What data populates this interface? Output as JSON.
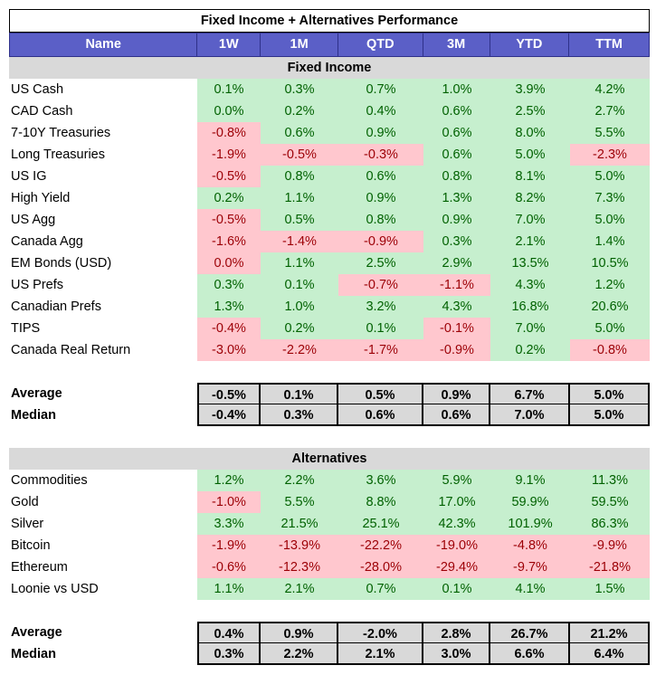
{
  "title": "Fixed Income + Alternatives Performance",
  "columns": [
    "Name",
    "1W",
    "1M",
    "QTD",
    "3M",
    "YTD",
    "TTM"
  ],
  "sections": [
    {
      "label": "Fixed Income",
      "rows": [
        {
          "name": "US Cash",
          "values": [
            "0.1%",
            "0.3%",
            "0.7%",
            "1.0%",
            "3.9%",
            "4.2%"
          ]
        },
        {
          "name": "CAD Cash",
          "values": [
            "0.0%",
            "0.2%",
            "0.4%",
            "0.6%",
            "2.5%",
            "2.7%"
          ]
        },
        {
          "name": "7-10Y Treasuries",
          "values": [
            "-0.8%",
            "0.6%",
            "0.9%",
            "0.6%",
            "8.0%",
            "5.5%"
          ]
        },
        {
          "name": "Long Treasuries",
          "values": [
            "-1.9%",
            "-0.5%",
            "-0.3%",
            "0.6%",
            "5.0%",
            "-2.3%"
          ]
        },
        {
          "name": "US IG",
          "values": [
            "-0.5%",
            "0.8%",
            "0.6%",
            "0.8%",
            "8.1%",
            "5.0%"
          ]
        },
        {
          "name": "High Yield",
          "values": [
            "0.2%",
            "1.1%",
            "0.9%",
            "1.3%",
            "8.2%",
            "7.3%"
          ]
        },
        {
          "name": "US Agg",
          "values": [
            "-0.5%",
            "0.5%",
            "0.8%",
            "0.9%",
            "7.0%",
            "5.0%"
          ]
        },
        {
          "name": "Canada Agg",
          "values": [
            "-1.6%",
            "-1.4%",
            "-0.9%",
            "0.3%",
            "2.1%",
            "1.4%"
          ]
        },
        {
          "name": "EM Bonds (USD)",
          "values": [
            "0.0%",
            "1.1%",
            "2.5%",
            "2.9%",
            "13.5%",
            "10.5%"
          ],
          "neg_override": [
            0
          ]
        },
        {
          "name": "US Prefs",
          "values": [
            "0.3%",
            "0.1%",
            "-0.7%",
            "-1.1%",
            "4.3%",
            "1.2%"
          ]
        },
        {
          "name": "Canadian Prefs",
          "values": [
            "1.3%",
            "1.0%",
            "3.2%",
            "4.3%",
            "16.8%",
            "20.6%"
          ]
        },
        {
          "name": "TIPS",
          "values": [
            "-0.4%",
            "0.2%",
            "0.1%",
            "-0.1%",
            "7.0%",
            "5.0%"
          ]
        },
        {
          "name": "Canada Real Return",
          "values": [
            "-3.0%",
            "-2.2%",
            "-1.7%",
            "-0.9%",
            "0.2%",
            "-0.8%"
          ]
        }
      ],
      "stats": [
        {
          "name": "Average",
          "values": [
            "-0.5%",
            "0.1%",
            "0.5%",
            "0.9%",
            "6.7%",
            "5.0%"
          ]
        },
        {
          "name": "Median",
          "values": [
            "-0.4%",
            "0.3%",
            "0.6%",
            "0.6%",
            "7.0%",
            "5.0%"
          ]
        }
      ]
    },
    {
      "label": "Alternatives",
      "rows": [
        {
          "name": "Commodities",
          "values": [
            "1.2%",
            "2.2%",
            "3.6%",
            "5.9%",
            "9.1%",
            "11.3%"
          ]
        },
        {
          "name": "Gold",
          "values": [
            "-1.0%",
            "5.5%",
            "8.8%",
            "17.0%",
            "59.9%",
            "59.5%"
          ]
        },
        {
          "name": "Silver",
          "values": [
            "3.3%",
            "21.5%",
            "25.1%",
            "42.3%",
            "101.9%",
            "86.3%"
          ]
        },
        {
          "name": "Bitcoin",
          "values": [
            "-1.9%",
            "-13.9%",
            "-22.2%",
            "-19.0%",
            "-4.8%",
            "-9.9%"
          ]
        },
        {
          "name": "Ethereum",
          "values": [
            "-0.6%",
            "-12.3%",
            "-28.0%",
            "-29.4%",
            "-9.7%",
            "-21.8%"
          ]
        },
        {
          "name": "Loonie vs USD",
          "values": [
            "1.1%",
            "2.1%",
            "0.7%",
            "0.1%",
            "4.1%",
            "1.5%"
          ]
        }
      ],
      "stats": [
        {
          "name": "Average",
          "values": [
            "0.4%",
            "0.9%",
            "-2.0%",
            "2.8%",
            "26.7%",
            "21.2%"
          ]
        },
        {
          "name": "Median",
          "values": [
            "0.3%",
            "2.2%",
            "2.1%",
            "3.0%",
            "6.6%",
            "6.4%"
          ]
        }
      ]
    }
  ]
}
